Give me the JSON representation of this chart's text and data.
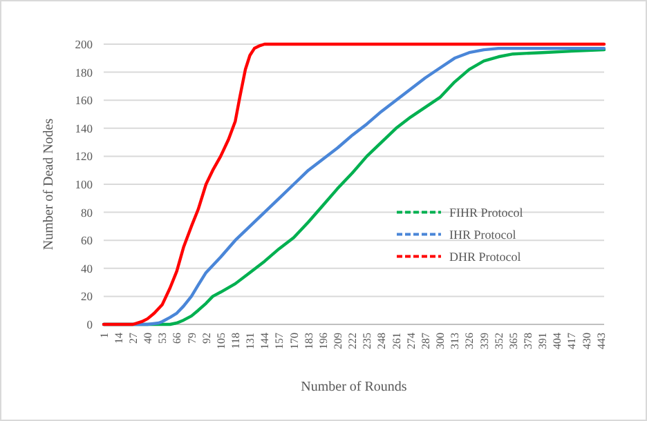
{
  "chart_data": {
    "type": "line",
    "xlabel": "Number of Rounds",
    "ylabel": "Number of Dead Nodes",
    "xlim": [
      1,
      446
    ],
    "ylim": [
      0,
      200
    ],
    "xticks": [
      1,
      14,
      27,
      40,
      53,
      66,
      79,
      92,
      105,
      118,
      131,
      144,
      157,
      170,
      183,
      196,
      209,
      222,
      235,
      248,
      261,
      274,
      287,
      300,
      313,
      326,
      339,
      352,
      365,
      378,
      391,
      404,
      417,
      430,
      443
    ],
    "yticks": [
      0,
      20,
      40,
      60,
      80,
      100,
      120,
      140,
      160,
      180,
      200
    ],
    "grid": "y",
    "legend": "right",
    "line_style": "solid",
    "series": [
      {
        "name": "FIHR Protocol",
        "color": "#00b050",
        "x": [
          1,
          60,
          66,
          72,
          79,
          85,
          92,
          98,
          105,
          118,
          131,
          144,
          157,
          170,
          183,
          196,
          209,
          222,
          235,
          248,
          261,
          274,
          287,
          300,
          313,
          326,
          339,
          352,
          365,
          391,
          417,
          446
        ],
        "values": [
          0,
          0,
          1,
          3,
          6,
          10,
          15,
          20,
          23,
          29,
          37,
          45,
          54,
          62,
          73,
          85,
          97,
          108,
          120,
          130,
          140,
          148,
          155,
          162,
          173,
          182,
          188,
          191,
          193,
          194,
          195,
          196
        ]
      },
      {
        "name": "IHR Protocol",
        "color": "#4a86d8",
        "x": [
          1,
          40,
          50,
          53,
          60,
          66,
          72,
          79,
          85,
          92,
          105,
          118,
          131,
          144,
          157,
          170,
          183,
          196,
          209,
          222,
          235,
          248,
          261,
          274,
          287,
          300,
          313,
          326,
          339,
          352,
          365,
          391,
          446
        ],
        "values": [
          0,
          0,
          1,
          2,
          5,
          8,
          13,
          20,
          28,
          37,
          48,
          60,
          70,
          80,
          90,
          100,
          110,
          118,
          126,
          135,
          143,
          152,
          160,
          168,
          176,
          183,
          190,
          194,
          196,
          197,
          197,
          197,
          197
        ]
      },
      {
        "name": "DHR Protocol",
        "color": "#ff0000",
        "x": [
          1,
          27,
          35,
          40,
          46,
          53,
          60,
          66,
          72,
          79,
          85,
          92,
          98,
          105,
          112,
          118,
          122,
          127,
          131,
          135,
          140,
          144,
          446
        ],
        "values": [
          0,
          0,
          2,
          4,
          8,
          14,
          26,
          38,
          55,
          70,
          82,
          100,
          110,
          120,
          132,
          145,
          162,
          182,
          192,
          197,
          199,
          200,
          200
        ]
      }
    ]
  }
}
